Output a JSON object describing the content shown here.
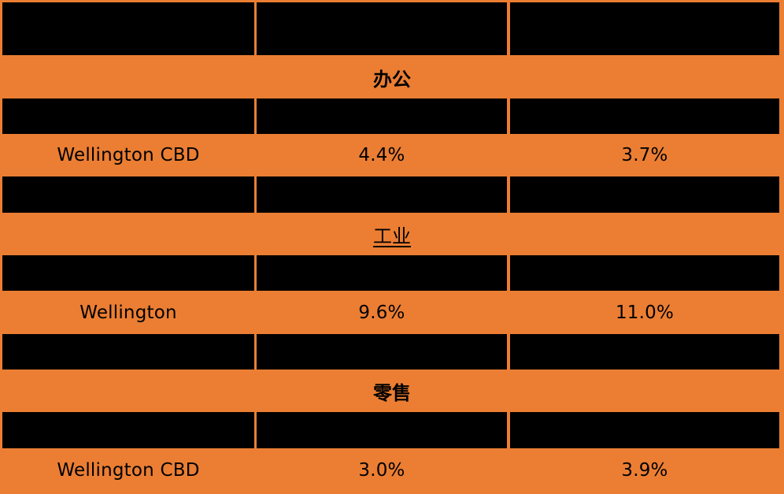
{
  "colors": {
    "accent": "#EB7E33",
    "header": "#000000",
    "text": "#000000"
  },
  "sections": [
    {
      "title": "办公",
      "row": {
        "market": "Wellington CBD",
        "col2": "4.4%",
        "col3": "3.7%"
      }
    },
    {
      "title": "工业",
      "row": {
        "market": "Wellington",
        "col2": "9.6%",
        "col3": "11.0%"
      }
    },
    {
      "title": "零售",
      "row": {
        "market": "Wellington CBD",
        "col2": "3.0%",
        "col3": "3.9%"
      }
    }
  ]
}
